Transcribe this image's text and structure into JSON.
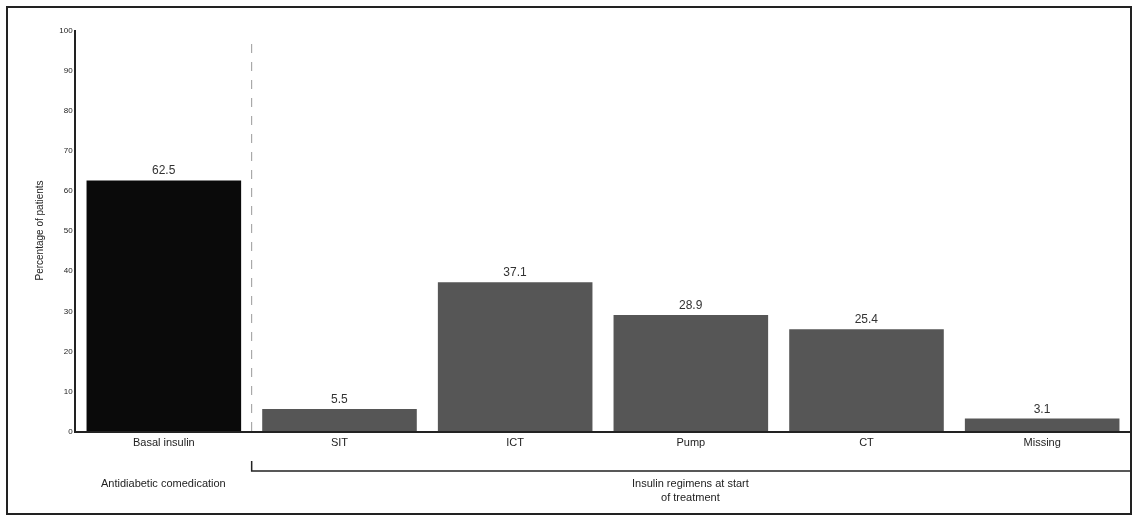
{
  "chart_data": {
    "type": "bar",
    "ylabel": "Percentage of patients",
    "categories": [
      "Basal insulin",
      "SIT",
      "ICT",
      "Pump",
      "CT",
      "Missing"
    ],
    "values": [
      62.5,
      5.5,
      37.1,
      28.9,
      25.4,
      3.1
    ],
    "colors": [
      "#0a0a0a",
      "#565656",
      "#565656",
      "#565656",
      "#565656",
      "#565656"
    ],
    "ylim": [
      0,
      100
    ],
    "yticks": [
      0,
      10,
      20,
      30,
      40,
      50,
      60,
      70,
      80,
      90,
      100
    ],
    "grid": false,
    "data_labels": true,
    "annotations": [
      "Antidiabetic comedication",
      "Insulin regimens at start\nof treatment"
    ]
  }
}
